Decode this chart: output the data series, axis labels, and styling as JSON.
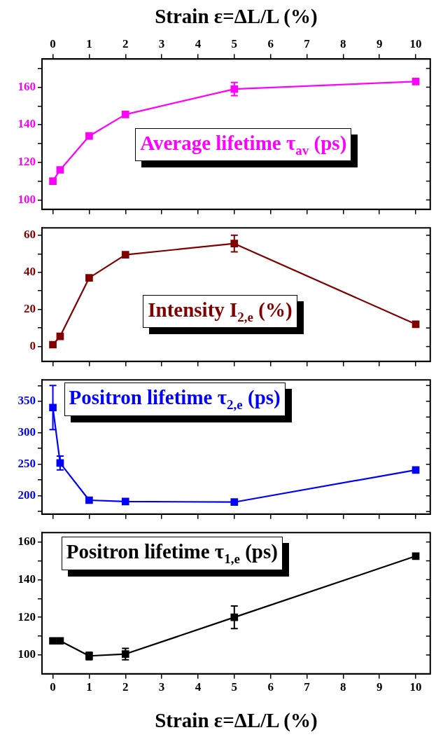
{
  "chart_data": [
    {
      "type": "line",
      "title": "Average lifetime τ$_{av}$ (ps)",
      "x2label": "Strain ε=ΔL/L (%)",
      "x": [
        0,
        0.2,
        1,
        2,
        5,
        10
      ],
      "series": [
        {
          "color": "#ff00ff",
          "values": [
            110,
            116,
            134,
            145.5,
            159,
            163
          ],
          "errors": [
            null,
            null,
            null,
            null,
            3.5,
            null
          ]
        }
      ],
      "xlim": [
        -0.3,
        10.4
      ],
      "xticks": [
        0,
        1,
        2,
        3,
        4,
        5,
        6,
        7,
        8,
        9,
        10
      ],
      "x2lim": [
        -0.3,
        10.4
      ],
      "x2ticks": [
        0,
        1,
        2,
        3,
        4,
        5,
        6,
        7,
        8,
        9,
        10
      ],
      "ylim": [
        95,
        175
      ],
      "yticks": [
        100,
        {
          "value": 110,
          "label": null
        },
        120,
        {
          "value": 130,
          "label": null
        },
        140,
        {
          "value": 150,
          "label": null
        },
        160,
        {
          "value": 170,
          "label": null
        }
      ],
      "tick_labels": "y",
      "grid": false,
      "legend": false,
      "marker": "square",
      "line_style": "solid"
    },
    {
      "type": "line",
      "title": "Intensity I$_{2,e}$ (%)",
      "x": [
        0,
        0.2,
        1,
        2,
        5,
        10
      ],
      "series": [
        {
          "color": "#800000",
          "values": [
            1,
            5.5,
            37,
            49.5,
            55.5,
            12
          ],
          "errors": [
            null,
            null,
            null,
            null,
            4.5,
            null
          ]
        }
      ],
      "xlim": [
        -0.3,
        10.4
      ],
      "xticks": [
        0,
        1,
        2,
        3,
        4,
        5,
        6,
        7,
        8,
        9,
        10
      ],
      "ylim": [
        -8,
        64
      ],
      "yticks": [
        0,
        {
          "value": 10,
          "label": null
        },
        20,
        {
          "value": 30,
          "label": null
        },
        40,
        {
          "value": 50,
          "label": null
        },
        60
      ],
      "tick_labels": "y",
      "grid": false,
      "legend": false,
      "marker": "square",
      "line_style": "solid"
    },
    {
      "type": "line",
      "title": "Positron lifetime τ$_{2,e}$ (ps)",
      "x": [
        0,
        0.2,
        1,
        2,
        5,
        10
      ],
      "series": [
        {
          "color": "#0000ff",
          "values": [
            340,
            252,
            193,
            191,
            190,
            241
          ],
          "errors": [
            35,
            11,
            null,
            null,
            null,
            null
          ]
        }
      ],
      "xlim": [
        -0.3,
        10.4
      ],
      "xticks": [
        0,
        1,
        2,
        3,
        4,
        5,
        6,
        7,
        8,
        9,
        10
      ],
      "ylim": [
        171,
        384
      ],
      "yticks": [
        {
          "value": 175,
          "label": null
        },
        200,
        {
          "value": 225,
          "label": null
        },
        250,
        {
          "value": 275,
          "label": null
        },
        300,
        {
          "value": 325,
          "label": null
        },
        350,
        {
          "value": 375,
          "label": null
        }
      ],
      "tick_labels": "y",
      "grid": false,
      "legend": false,
      "marker": "square",
      "line_style": "solid"
    },
    {
      "type": "line",
      "title": "Positron lifetime τ$_{1,e}$ (ps)",
      "xlabel": "Strain ε=ΔL/L (%)",
      "x": [
        0,
        0.2,
        1,
        2,
        5,
        10
      ],
      "series": [
        {
          "color": "#000000",
          "values": [
            107.5,
            107.5,
            99.5,
            100.5,
            120,
            152.5
          ],
          "errors": [
            null,
            null,
            2,
            3,
            6,
            null
          ]
        }
      ],
      "xlim": [
        -0.3,
        10.4
      ],
      "xticks": [
        0,
        1,
        2,
        3,
        4,
        5,
        6,
        7,
        8,
        9,
        10
      ],
      "ylim": [
        90,
        165
      ],
      "yticks": [
        100,
        {
          "value": 110,
          "label": null
        },
        120,
        {
          "value": 130,
          "label": null
        },
        140,
        {
          "value": 150,
          "label": null
        },
        160
      ],
      "grid": false,
      "legend": false,
      "marker": "square",
      "line_style": "solid"
    }
  ]
}
